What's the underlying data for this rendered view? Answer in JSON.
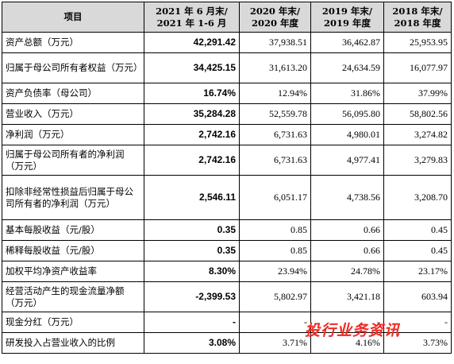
{
  "header": {
    "item": "项目",
    "col1_line1": "2021 年 6 月末/",
    "col1_line2": "2021 年 1-6 月",
    "col2_line1": "2020 年末/",
    "col2_line2": "2020 年度",
    "col3_line1": "2019 年末/",
    "col3_line2": "2019 年度",
    "col4_line1": "2018 年末/",
    "col4_line2": "2018 年度"
  },
  "rows": [
    {
      "label": "资产总额（万元）",
      "v1": "42,291.42",
      "v2": "37,938.51",
      "v3": "36,462.87",
      "v4": "25,953.95"
    },
    {
      "label": "归属于母公司所有者权益（万元）",
      "v1": "34,425.15",
      "v2": "31,613.20",
      "v3": "24,634.59",
      "v4": "16,077.97"
    },
    {
      "label": "资产负债率（母公司）",
      "v1": "16.74%",
      "v2": "12.94%",
      "v3": "31.86%",
      "v4": "37.99%"
    },
    {
      "label": "营业收入（万元）",
      "v1": "35,284.28",
      "v2": "52,559.78",
      "v3": "56,095.80",
      "v4": "58,802.56"
    },
    {
      "label": "净利润（万元）",
      "v1": "2,742.16",
      "v2": "6,731.63",
      "v3": "4,980.01",
      "v4": "3,274.82"
    },
    {
      "label": "归属于母公司所有者的净利润（万元）",
      "v1": "2,742.16",
      "v2": "6,731.63",
      "v3": "4,977.41",
      "v4": "3,279.83"
    },
    {
      "label": "扣除非经常性损益后归属于母公司所有者的净利润（万元）",
      "v1": "2,546.11",
      "v2": "6,051.17",
      "v3": "4,738.56",
      "v4": "3,208.70"
    },
    {
      "label": "基本每股收益（元/股）",
      "v1": "0.35",
      "v2": "0.85",
      "v3": "0.66",
      "v4": "0.45"
    },
    {
      "label": "稀释每股收益（元/股）",
      "v1": "0.35",
      "v2": "0.85",
      "v3": "0.66",
      "v4": "0.45"
    },
    {
      "label": "加权平均净资产收益率",
      "v1": "8.30%",
      "v2": "23.94%",
      "v3": "24.78%",
      "v4": "23.17%"
    },
    {
      "label": "经营活动产生的现金流量净额（万元）",
      "v1": "-2,399.53",
      "v2": "5,802.97",
      "v3": "3,421.18",
      "v4": "603.94"
    },
    {
      "label": "现金分红（万元）",
      "v1": "-",
      "v2": "-",
      "v3": "-",
      "v4": "-"
    },
    {
      "label": "研发投入占营业收入的比例",
      "v1": "3.08%",
      "v2": "3.71%",
      "v3": "4.16%",
      "v4": "3.73%"
    }
  ],
  "watermark": {
    "text": "投行业务资讯",
    "color": "#ee2a24"
  }
}
